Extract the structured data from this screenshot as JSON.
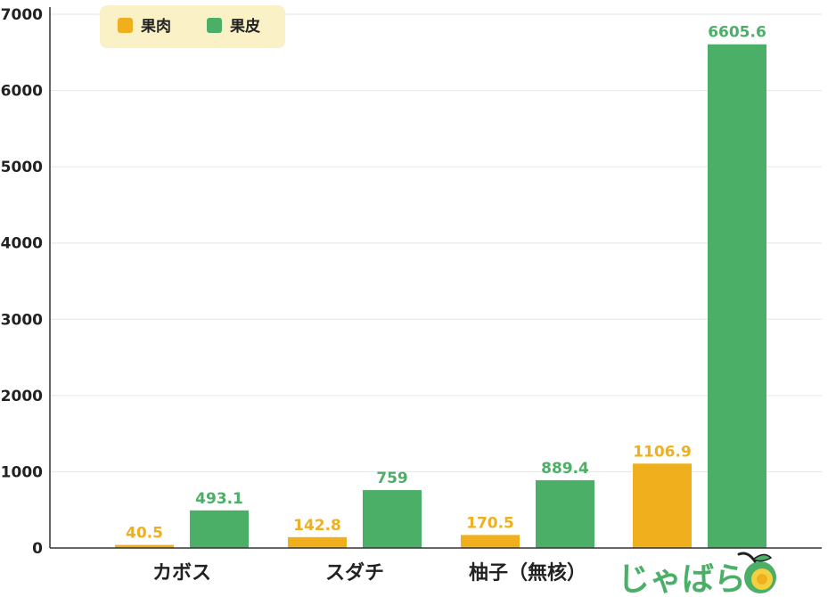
{
  "chart_data": {
    "type": "bar",
    "categories": [
      "カボス",
      "スダチ",
      "柚子（無核）",
      "じゃばら"
    ],
    "series": [
      {
        "name": "果肉",
        "color": "#f0b01e",
        "values": [
          40.5,
          142.8,
          170.5,
          1106.9
        ]
      },
      {
        "name": "果皮",
        "color": "#4caf68",
        "values": [
          493.1,
          759,
          889.4,
          6605.6
        ]
      }
    ],
    "data_labels": [
      [
        "40.5",
        "142.8",
        "170.5",
        "1106.9"
      ],
      [
        "493.1",
        "759",
        "889.4",
        "6605.6"
      ]
    ],
    "ylim": [
      0,
      7000
    ],
    "yticks": [
      0,
      1000,
      2000,
      3000,
      4000,
      5000,
      6000,
      7000
    ],
    "grid": true,
    "legend": "top-left",
    "highlight_category_color": "#4caf68",
    "highlight_category_icon": "citrus-fruit-icon"
  }
}
